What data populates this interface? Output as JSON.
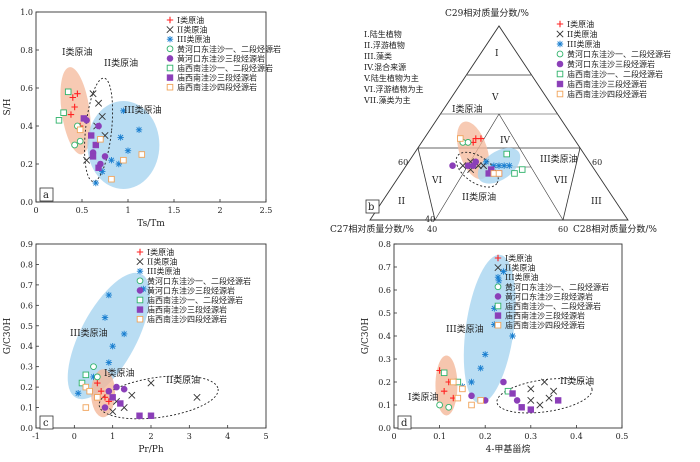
{
  "colors": {
    "type_I": "#ff2222",
    "type_II": "#333333",
    "type_III": "#1a7fd0",
    "src_hhk_e12": "#2fb26a",
    "src_hhk_e3": "#8b3fb8",
    "src_mxn_e12": "#2fb26a",
    "src_mxn_e3": "#8b3fb8",
    "src_mxn_e4": "#f0a35a",
    "ellipse_I": "#f4b89a",
    "ellipse_III": "#a8d4f0"
  },
  "legend": {
    "items": [
      {
        "id": "I",
        "label": "I类原油",
        "marker": "plus"
      },
      {
        "id": "II",
        "label": "II类原油",
        "marker": "x"
      },
      {
        "id": "III",
        "label": "III类原油",
        "marker": "star"
      },
      {
        "id": "hhk12",
        "label": "黄河口东洼沙一、二段烃源岩",
        "marker": "circle-open"
      },
      {
        "id": "hhk3",
        "label": "黄河口东洼沙三段烃源岩",
        "marker": "circle-filled"
      },
      {
        "id": "mx12",
        "label": "庙西南洼沙一、二段烃源岩",
        "marker": "square-open-green"
      },
      {
        "id": "mx3",
        "label": "庙西南洼沙三段烃源岩",
        "marker": "square-filled"
      },
      {
        "id": "mx4",
        "label": "庙西南洼沙四段烃源岩",
        "marker": "square-open-orange"
      }
    ]
  },
  "panel_a": {
    "panel_label": "a",
    "group_labels": {
      "I": "I类原油",
      "II": "II类原油",
      "III": "III类原油"
    }
  },
  "panel_b": {
    "panel_label": "b",
    "top_label": "C29相对质量分数/%",
    "left_label": "C27相对质量分数/%",
    "right_label": "C28相对质量分数/%",
    "regions": [
      "I",
      "II",
      "III",
      "IV",
      "V",
      "VI",
      "VII"
    ],
    "side_ticks": {
      "left_60": "60",
      "left_40": "40",
      "right_60": "60",
      "right_40": "40",
      "bottom_40": "40",
      "bottom_60": "60"
    },
    "region_notes": [
      "I.陆生植物",
      "II.浮游植物",
      "III.藻类",
      "IV.混合来源",
      "V.陆生植物为主",
      "VI.浮游植物为主",
      "VII.藻类为主"
    ],
    "group_labels": {
      "I": "I类原油",
      "II": "II类原油",
      "III": "III类原油"
    }
  },
  "panel_c": {
    "panel_label": "c",
    "group_labels": {
      "I": "I类原油",
      "II": "II类原油",
      "III": "III类原油"
    }
  },
  "panel_d": {
    "panel_label": "d",
    "group_labels": {
      "I": "I类原油",
      "II": "II类原油",
      "III": "III类原油"
    }
  },
  "chart_data": [
    {
      "id": "a",
      "type": "scatter",
      "xlabel": "Ts/Tm",
      "ylabel": "S/H",
      "xlim": [
        0,
        2.5
      ],
      "ylim": [
        0,
        1
      ],
      "xticks": [
        0,
        0.5,
        1,
        1.5,
        2,
        2.5
      ],
      "yticks": [
        0,
        0.2,
        0.4,
        0.6,
        0.8,
        1
      ],
      "series": [
        {
          "name": "I类原油",
          "marker": "plus",
          "points": [
            [
              0.4,
              0.55
            ],
            [
              0.45,
              0.57
            ],
            [
              0.42,
              0.5
            ],
            [
              0.48,
              0.4
            ],
            [
              0.38,
              0.46
            ]
          ]
        },
        {
          "name": "II类原油",
          "marker": "x",
          "points": [
            [
              0.62,
              0.57
            ],
            [
              0.68,
              0.52
            ],
            [
              0.72,
              0.45
            ],
            [
              0.66,
              0.4
            ],
            [
              0.75,
              0.35
            ],
            [
              0.55,
              0.22
            ]
          ]
        },
        {
          "name": "III类原油",
          "marker": "star",
          "points": [
            [
              0.95,
              0.48
            ],
            [
              1.12,
              0.38
            ],
            [
              0.92,
              0.34
            ],
            [
              1.0,
              0.27
            ],
            [
              0.82,
              0.22
            ],
            [
              0.72,
              0.16
            ],
            [
              0.65,
              0.1
            ],
            [
              0.9,
              0.2
            ]
          ]
        },
        {
          "name": "黄河口东洼沙一、二段烃源岩",
          "marker": "circle-open",
          "points": [
            [
              0.45,
              0.4
            ],
            [
              0.48,
              0.32
            ],
            [
              0.42,
              0.3
            ]
          ]
        },
        {
          "name": "黄河口东洼沙三段烃源岩",
          "marker": "circle-filled",
          "points": [
            [
              0.55,
              0.43
            ],
            [
              0.68,
              0.4
            ],
            [
              0.62,
              0.26
            ],
            [
              0.7,
              0.2
            ],
            [
              0.75,
              0.24
            ]
          ]
        },
        {
          "name": "庙西南洼沙一、二段烃源岩",
          "marker": "square-open-green",
          "points": [
            [
              0.25,
              0.43
            ],
            [
              0.3,
              0.47
            ],
            [
              0.35,
              0.58
            ]
          ]
        },
        {
          "name": "庙西南洼沙三段烃源岩",
          "marker": "square-filled",
          "points": [
            [
              0.52,
              0.44
            ],
            [
              0.6,
              0.35
            ],
            [
              0.65,
              0.3
            ],
            [
              0.68,
              0.18
            ],
            [
              0.62,
              0.24
            ]
          ]
        },
        {
          "name": "庙西南洼沙四段烃源岩",
          "marker": "square-open-orange",
          "points": [
            [
              0.48,
              0.38
            ],
            [
              0.7,
              0.33
            ],
            [
              1.15,
              0.25
            ],
            [
              0.95,
              0.22
            ],
            [
              0.82,
              0.12
            ]
          ]
        }
      ]
    },
    {
      "id": "b",
      "type": "scatter",
      "subtype": "ternary",
      "note": "ternary diagram of C27 / C28 / C29 steranes; points given as [C27%, C28%, C29%]",
      "series": [
        {
          "name": "I类原油",
          "marker": "plus",
          "points": [
            [
              40,
              20,
              40
            ],
            [
              38,
              20,
              42
            ],
            [
              36,
              22,
              42
            ]
          ]
        },
        {
          "name": "II类原油",
          "marker": "x",
          "points": [
            [
              50,
              22,
              28
            ],
            [
              48,
              26,
              26
            ],
            [
              46,
              24,
              30
            ],
            [
              44,
              28,
              28
            ],
            [
              42,
              30,
              28
            ]
          ]
        },
        {
          "name": "III类原油",
          "marker": "star",
          "points": [
            [
              36,
              36,
              28
            ],
            [
              34,
              38,
              28
            ],
            [
              38,
              34,
              28
            ],
            [
              32,
              40,
              28
            ],
            [
              40,
              30,
              30
            ]
          ]
        },
        {
          "name": "黄河口东洼沙一、二段烃源岩",
          "marker": "circle-open",
          "points": [
            [
              44,
              16,
              40
            ],
            [
              42,
              18,
              40
            ]
          ]
        },
        {
          "name": "黄河口东洼沙三段烃源岩",
          "marker": "circle-filled",
          "points": [
            [
              54,
              18,
              28
            ],
            [
              48,
              24,
              28
            ],
            [
              46,
              26,
              28
            ],
            [
              44,
              26,
              30
            ]
          ]
        },
        {
          "name": "庙西南洼沙一、二段烃源岩",
          "marker": "square-open-green",
          "points": [
            [
              30,
              36,
              34
            ],
            [
              28,
              46,
              26
            ],
            [
              32,
              44,
              24
            ]
          ]
        },
        {
          "name": "庙西南洼沙三段烃源岩",
          "marker": "square-filled",
          "points": [
            [
              40,
              34,
              26
            ],
            [
              42,
              34,
              24
            ],
            [
              38,
              38,
              24
            ]
          ]
        },
        {
          "name": "庙西南洼沙四段烃源岩",
          "marker": "square-open-orange",
          "points": [
            [
              44,
              14,
              42
            ],
            [
              40,
              36,
              24
            ],
            [
              38,
              38,
              24
            ]
          ]
        }
      ]
    },
    {
      "id": "c",
      "type": "scatter",
      "xlabel": "Pr/Ph",
      "ylabel": "G/C30H",
      "xlim": [
        -1,
        5
      ],
      "ylim": [
        0,
        0.9
      ],
      "xticks": [
        -1,
        0,
        1,
        2,
        3,
        4,
        5
      ],
      "yticks": [
        0,
        0.1,
        0.2,
        0.3,
        0.4,
        0.5,
        0.6,
        0.7,
        0.8,
        0.9
      ],
      "series": [
        {
          "name": "I类原油",
          "marker": "plus",
          "points": [
            [
              0.6,
              0.22
            ],
            [
              0.7,
              0.18
            ],
            [
              0.8,
              0.15
            ],
            [
              0.9,
              0.13
            ]
          ]
        },
        {
          "name": "II类原油",
          "marker": "x",
          "points": [
            [
              1.1,
              0.13
            ],
            [
              1.3,
              0.1
            ],
            [
              1.5,
              0.16
            ],
            [
              2.0,
              0.22
            ],
            [
              3.2,
              0.15
            ],
            [
              1.0,
              0.08
            ]
          ]
        },
        {
          "name": "III类原油",
          "marker": "star",
          "points": [
            [
              0.9,
              0.65
            ],
            [
              1.8,
              0.68
            ],
            [
              0.8,
              0.54
            ],
            [
              1.3,
              0.46
            ],
            [
              1.0,
              0.4
            ],
            [
              0.9,
              0.32
            ],
            [
              0.5,
              0.25
            ],
            [
              0.1,
              0.17
            ]
          ]
        },
        {
          "name": "黄河口东洼沙一、二段烃源岩",
          "marker": "circle-open",
          "points": [
            [
              0.5,
              0.3
            ],
            [
              0.6,
              0.25
            ]
          ]
        },
        {
          "name": "黄河口东洼沙三段烃源岩",
          "marker": "circle-filled",
          "points": [
            [
              0.9,
              0.18
            ],
            [
              1.1,
              0.2
            ],
            [
              1.3,
              0.19
            ],
            [
              0.8,
              0.1
            ]
          ]
        },
        {
          "name": "庙西南洼沙一、二段烃源岩",
          "marker": "square-open-green",
          "points": [
            [
              0.3,
              0.26
            ],
            [
              0.2,
              0.22
            ]
          ]
        },
        {
          "name": "庙西南洼沙三段烃源岩",
          "marker": "square-filled",
          "points": [
            [
              1.0,
              0.15
            ],
            [
              1.2,
              0.12
            ],
            [
              1.7,
              0.06
            ],
            [
              2.0,
              0.06
            ]
          ]
        },
        {
          "name": "庙西南洼沙四段烃源岩",
          "marker": "square-open-orange",
          "points": [
            [
              0.3,
              0.2
            ],
            [
              0.4,
              0.18
            ],
            [
              0.6,
              0.15
            ],
            [
              0.3,
              0.1
            ]
          ]
        }
      ]
    },
    {
      "id": "d",
      "type": "scatter",
      "xlabel": "4-甲基甾烷",
      "ylabel": "G/C30H",
      "xlim": [
        0,
        0.5
      ],
      "ylim": [
        0,
        0.8
      ],
      "xticks": [
        0,
        0.1,
        0.2,
        0.3,
        0.4,
        0.5
      ],
      "yticks": [
        0,
        0.1,
        0.2,
        0.3,
        0.4,
        0.5,
        0.6,
        0.7,
        0.8
      ],
      "series": [
        {
          "name": "I类原油",
          "marker": "plus",
          "points": [
            [
              0.1,
              0.25
            ],
            [
              0.12,
              0.2
            ],
            [
              0.11,
              0.16
            ],
            [
              0.13,
              0.13
            ]
          ]
        },
        {
          "name": "II类原油",
          "marker": "x",
          "points": [
            [
              0.3,
              0.17
            ],
            [
              0.33,
              0.2
            ],
            [
              0.35,
              0.16
            ],
            [
              0.34,
              0.13
            ],
            [
              0.32,
              0.1
            ],
            [
              0.3,
              0.12
            ]
          ]
        },
        {
          "name": "III类原油",
          "marker": "star",
          "points": [
            [
              0.24,
              0.68
            ],
            [
              0.23,
              0.64
            ],
            [
              0.22,
              0.52
            ],
            [
              0.22,
              0.45
            ],
            [
              0.2,
              0.32
            ],
            [
              0.19,
              0.26
            ],
            [
              0.17,
              0.2
            ],
            [
              0.15,
              0.18
            ],
            [
              0.26,
              0.4
            ]
          ]
        },
        {
          "name": "黄河口东洼沙一、二段烃源岩",
          "marker": "circle-open",
          "points": [
            [
              0.1,
              0.1
            ],
            [
              0.12,
              0.09
            ]
          ]
        },
        {
          "name": "黄河口东洼沙三段烃源岩",
          "marker": "circle-filled",
          "points": [
            [
              0.17,
              0.14
            ],
            [
              0.2,
              0.12
            ],
            [
              0.24,
              0.2
            ],
            [
              0.27,
              0.12
            ]
          ]
        },
        {
          "name": "庙西南洼沙一、二段烃源岩",
          "marker": "square-open-green",
          "points": [
            [
              0.11,
              0.24
            ],
            [
              0.14,
              0.2
            ],
            [
              0.25,
              0.16
            ]
          ]
        },
        {
          "name": "庙西南洼沙三段烃源岩",
          "marker": "square-filled",
          "points": [
            [
              0.26,
              0.15
            ],
            [
              0.28,
              0.09
            ],
            [
              0.3,
              0.08
            ],
            [
              0.36,
              0.12
            ]
          ]
        },
        {
          "name": "庙西南洼沙四段烃源岩",
          "marker": "square-open-orange",
          "points": [
            [
              0.13,
              0.2
            ],
            [
              0.15,
              0.17
            ],
            [
              0.14,
              0.13
            ],
            [
              0.17,
              0.1
            ],
            [
              0.19,
              0.12
            ]
          ]
        }
      ]
    }
  ]
}
